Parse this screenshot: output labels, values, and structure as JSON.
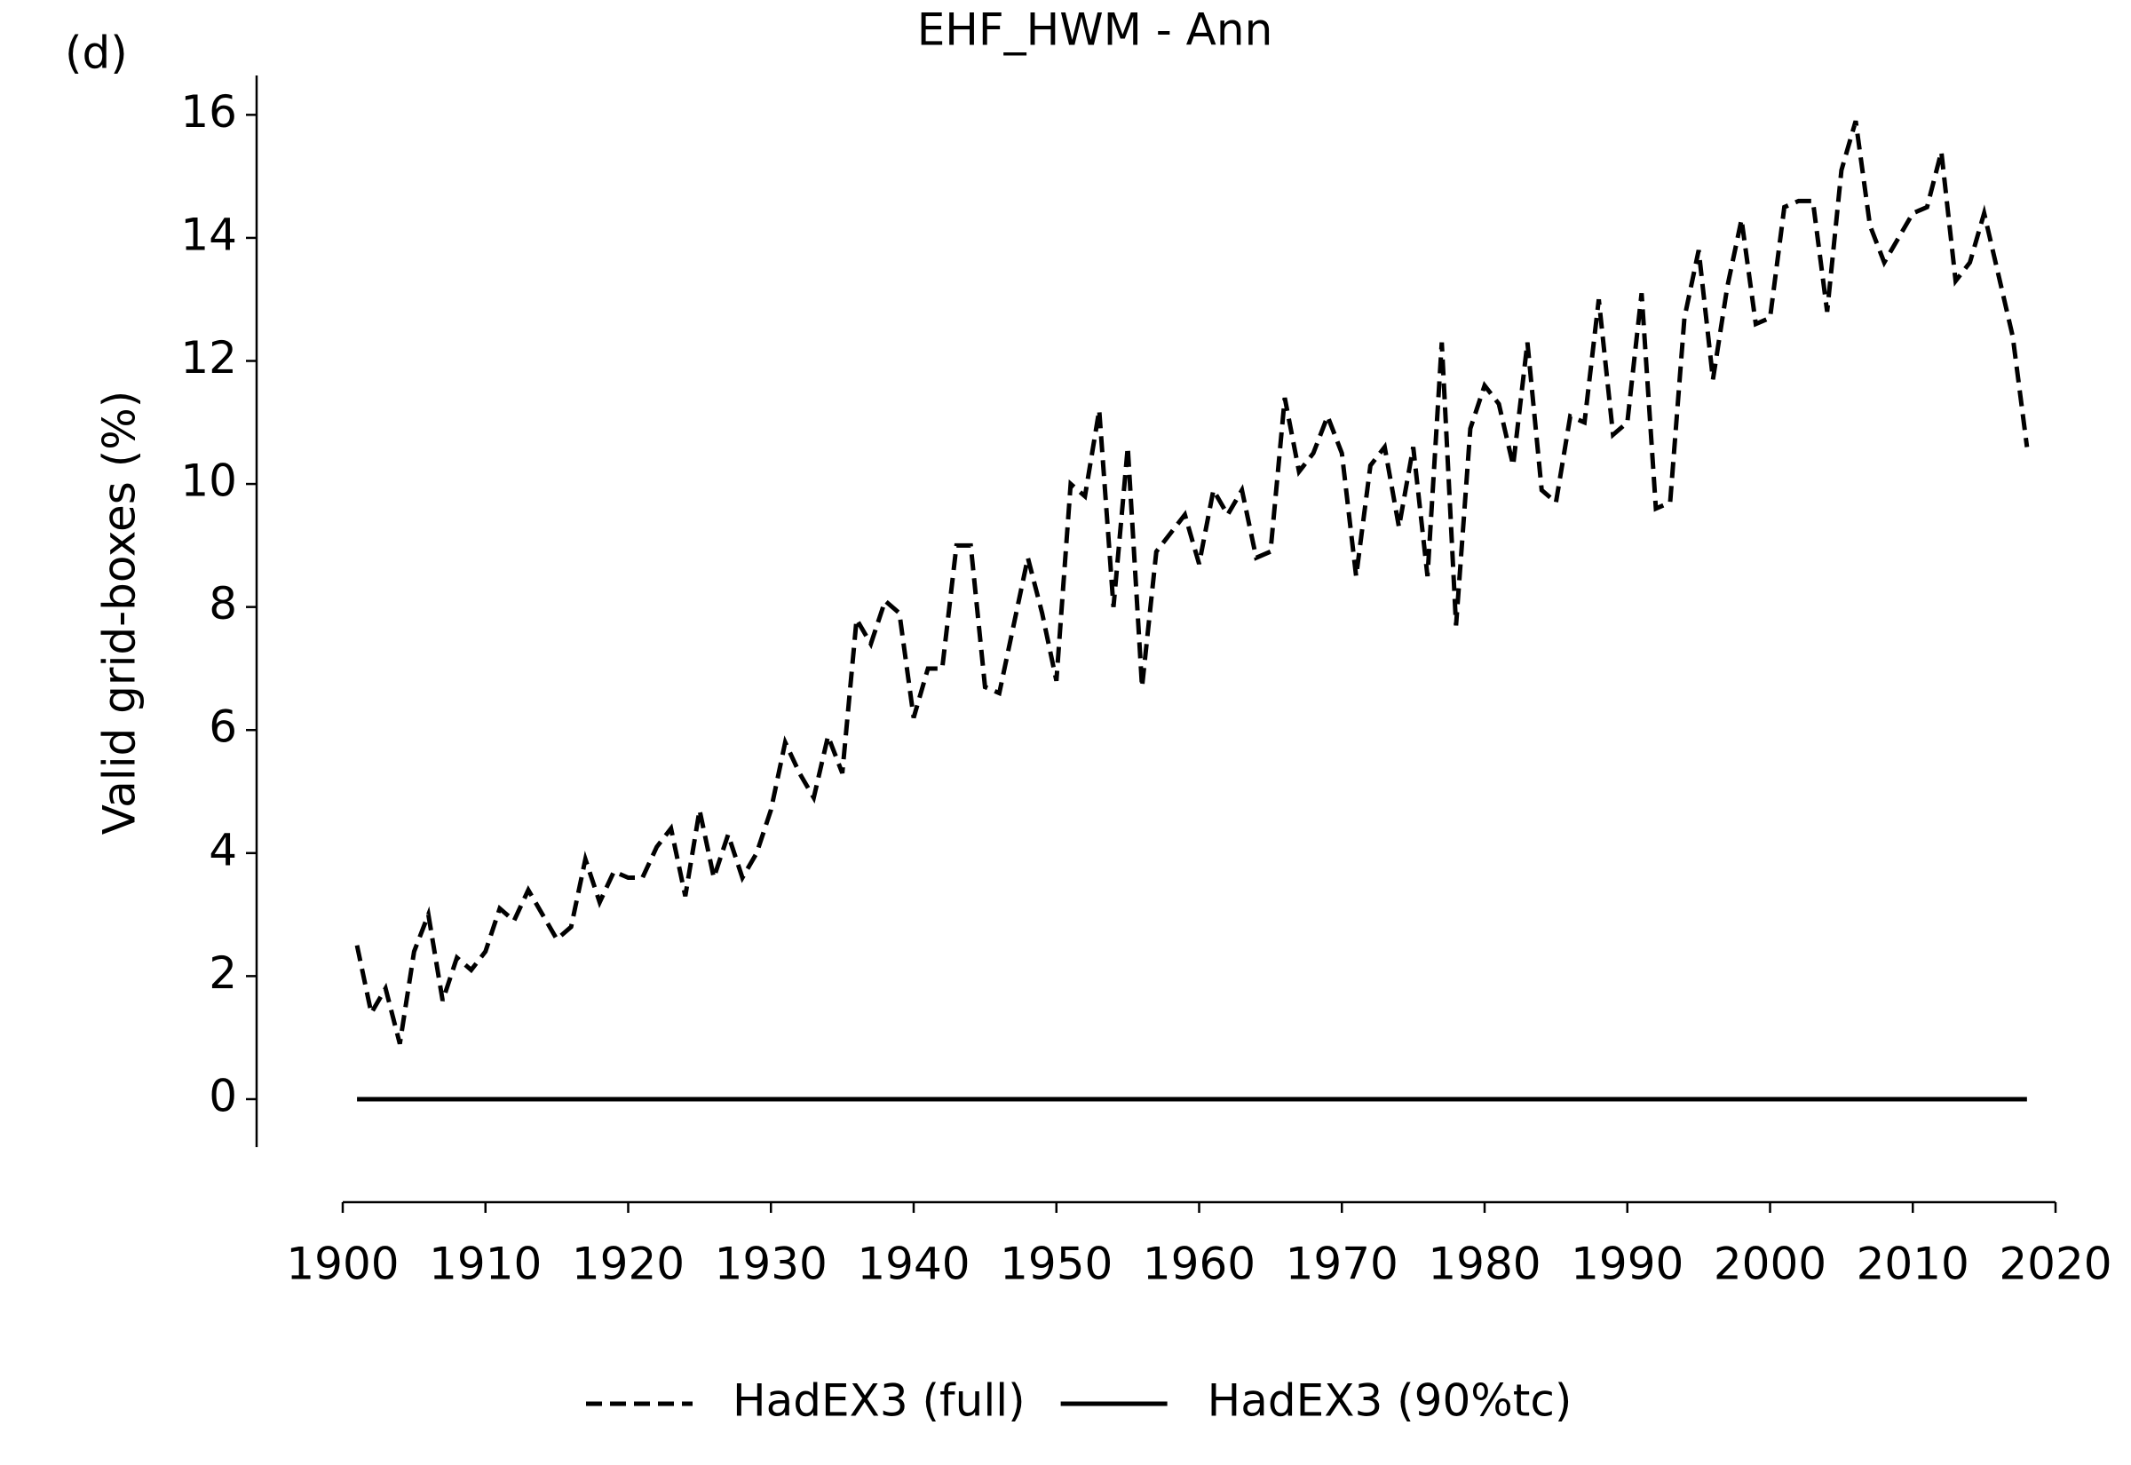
{
  "chart_data": {
    "type": "line",
    "title": "EHF_HWM - Ann",
    "annotation": "(d)",
    "ylabel": "Valid grid-boxes (%)",
    "x": [
      1901,
      1902,
      1903,
      1904,
      1905,
      1906,
      1907,
      1908,
      1909,
      1910,
      1911,
      1912,
      1913,
      1914,
      1915,
      1916,
      1917,
      1918,
      1919,
      1920,
      1921,
      1922,
      1923,
      1924,
      1925,
      1926,
      1927,
      1928,
      1929,
      1930,
      1931,
      1932,
      1933,
      1934,
      1935,
      1936,
      1937,
      1938,
      1939,
      1940,
      1941,
      1942,
      1943,
      1944,
      1945,
      1946,
      1947,
      1948,
      1949,
      1950,
      1951,
      1952,
      1953,
      1954,
      1955,
      1956,
      1957,
      1958,
      1959,
      1960,
      1961,
      1962,
      1963,
      1964,
      1965,
      1966,
      1967,
      1968,
      1969,
      1970,
      1971,
      1972,
      1973,
      1974,
      1975,
      1976,
      1977,
      1978,
      1979,
      1980,
      1981,
      1982,
      1983,
      1984,
      1985,
      1986,
      1987,
      1988,
      1989,
      1990,
      1991,
      1992,
      1993,
      1994,
      1995,
      1996,
      1997,
      1998,
      1999,
      2000,
      2001,
      2002,
      2003,
      2004,
      2005,
      2006,
      2007,
      2008,
      2009,
      2010,
      2011,
      2012,
      2013,
      2014,
      2015,
      2016,
      2017,
      2018
    ],
    "series": [
      {
        "name": "HadEX3 (full)",
        "color": "#000000",
        "dash": true,
        "values": [
          2.5,
          1.4,
          1.8,
          0.9,
          2.4,
          3.0,
          1.6,
          2.3,
          2.1,
          2.4,
          3.1,
          2.9,
          3.4,
          3.0,
          2.6,
          2.8,
          3.9,
          3.2,
          3.7,
          3.6,
          3.6,
          4.1,
          4.4,
          3.3,
          4.7,
          3.6,
          4.3,
          3.6,
          4.0,
          4.7,
          5.8,
          5.3,
          4.9,
          5.9,
          5.3,
          7.8,
          7.4,
          8.1,
          7.9,
          6.2,
          7.0,
          7.0,
          9.0,
          9.0,
          6.7,
          6.6,
          7.7,
          8.8,
          7.9,
          6.8,
          10.0,
          9.8,
          11.2,
          8.0,
          10.6,
          6.7,
          8.9,
          9.2,
          9.5,
          8.7,
          9.9,
          9.5,
          9.9,
          8.8,
          8.9,
          11.4,
          10.2,
          10.5,
          11.1,
          10.5,
          8.5,
          10.3,
          10.6,
          9.3,
          10.6,
          8.5,
          12.3,
          7.7,
          10.9,
          11.6,
          11.3,
          10.3,
          12.3,
          9.9,
          9.7,
          11.1,
          11.0,
          13.0,
          10.8,
          11.0,
          13.1,
          9.6,
          9.7,
          12.7,
          13.8,
          11.7,
          13.2,
          14.3,
          12.6,
          12.7,
          14.5,
          14.6,
          14.6,
          12.8,
          15.1,
          15.9,
          14.2,
          13.6,
          14.0,
          14.4,
          14.5,
          15.4,
          13.3,
          13.6,
          14.4,
          13.4,
          12.4,
          10.6
        ]
      },
      {
        "name": "HadEX3 (90%tc)",
        "color": "#000000",
        "dash": false,
        "values": [
          0,
          0,
          0,
          0,
          0,
          0,
          0,
          0,
          0,
          0,
          0,
          0,
          0,
          0,
          0,
          0,
          0,
          0,
          0,
          0,
          0,
          0,
          0,
          0,
          0,
          0,
          0,
          0,
          0,
          0,
          0,
          0,
          0,
          0,
          0,
          0,
          0,
          0,
          0,
          0,
          0,
          0,
          0,
          0,
          0,
          0,
          0,
          0,
          0,
          0,
          0,
          0,
          0,
          0,
          0,
          0,
          0,
          0,
          0,
          0,
          0,
          0,
          0,
          0,
          0,
          0,
          0,
          0,
          0,
          0,
          0,
          0,
          0,
          0,
          0,
          0,
          0,
          0,
          0,
          0,
          0,
          0,
          0,
          0,
          0,
          0,
          0,
          0,
          0,
          0,
          0,
          0,
          0,
          0,
          0,
          0,
          0,
          0,
          0,
          0,
          0,
          0,
          0,
          0,
          0,
          0,
          0,
          0,
          0,
          0,
          0,
          0,
          0,
          0,
          0,
          0,
          0,
          0
        ]
      }
    ],
    "xlim": [
      1900,
      2020
    ],
    "xticks": [
      1900,
      1910,
      1920,
      1930,
      1940,
      1950,
      1960,
      1970,
      1980,
      1990,
      2000,
      2010,
      2020
    ],
    "ylim": [
      -0.78,
      16.64
    ],
    "yticks": [
      0,
      2,
      4,
      6,
      8,
      10,
      12,
      14,
      16
    ],
    "grid": false,
    "legend": "bottom"
  }
}
